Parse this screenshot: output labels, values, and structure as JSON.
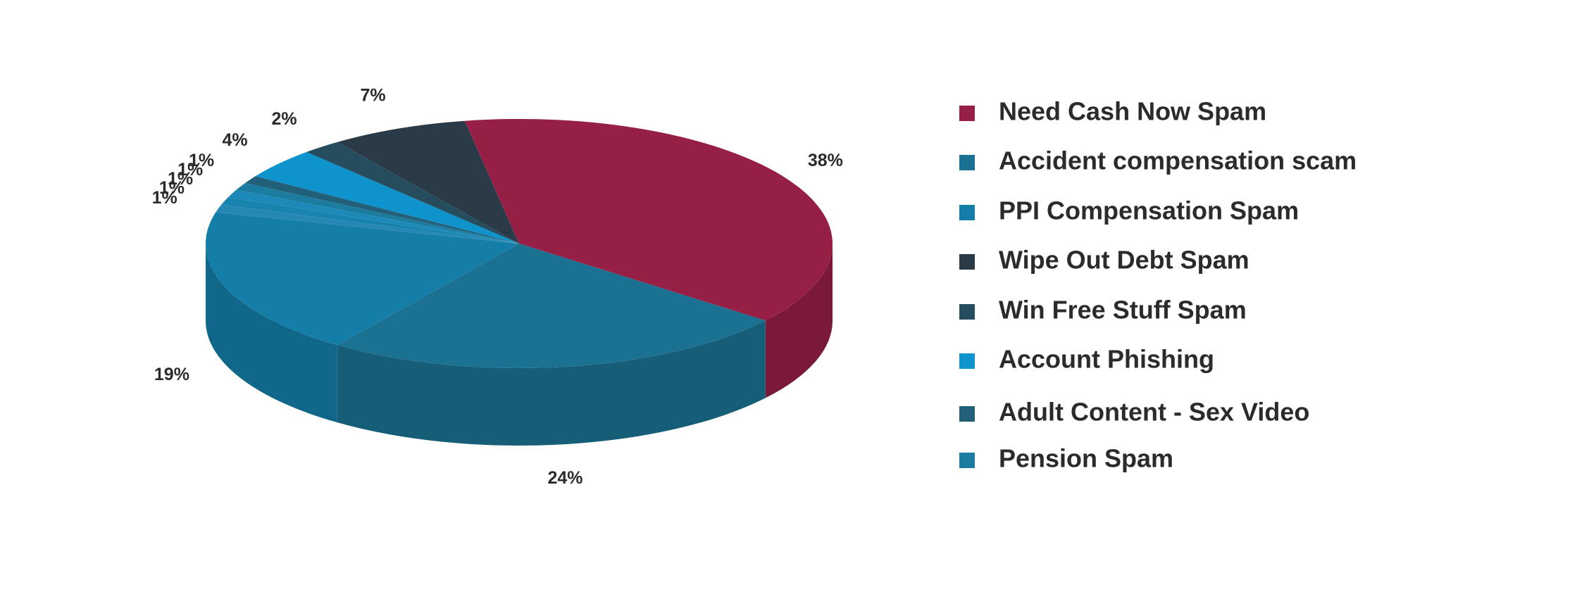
{
  "chart_data": {
    "type": "pie3d",
    "categories": [
      "Need Cash Now Spam",
      "Accident compensation scam",
      "PPI Compensation Spam",
      "Wipe Out Debt Spam",
      "Win Free Stuff Spam",
      "Account Phishing",
      "Adult Content - Sex Video",
      "Pension Spam",
      null,
      null,
      null
    ],
    "values": [
      38,
      24,
      19,
      7,
      2,
      4,
      1,
      1,
      1,
      1,
      1
    ],
    "value_labels": [
      "38%",
      "24%",
      "19%",
      "7%",
      "2%",
      "4%",
      "1%",
      "1%",
      "1%",
      "1%",
      "1%"
    ],
    "colors": [
      "#951f45",
      "#1b7191",
      "#157ea8",
      "#2a3b47",
      "#254d5e",
      "#0f93cc",
      "#22607a",
      "#1c7ca0",
      "#1d89b8",
      "#1983b0",
      "#2487b4"
    ],
    "legend": true
  }
}
